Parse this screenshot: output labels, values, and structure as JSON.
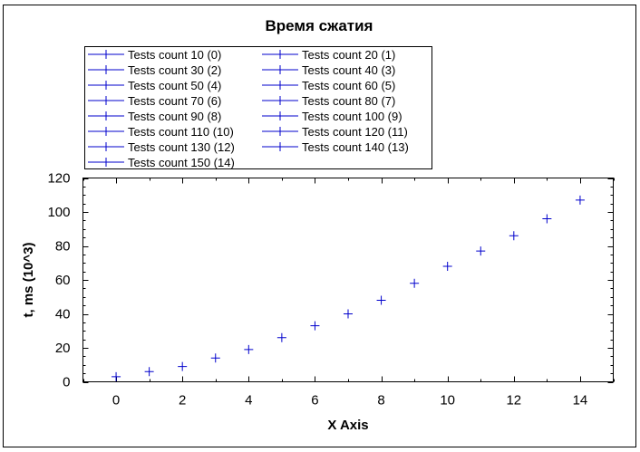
{
  "chart_data": {
    "type": "scatter",
    "title": "Время сжатия",
    "xlabel": "X Axis",
    "ylabel": "t, ms (10^3)",
    "xlim": [
      -1,
      15
    ],
    "ylim": [
      0,
      120
    ],
    "x_ticks": [
      0,
      2,
      4,
      6,
      8,
      10,
      12,
      14
    ],
    "y_ticks": [
      0,
      20,
      40,
      60,
      80,
      100,
      120
    ],
    "legend_position": "top",
    "marker": "plus",
    "color": "#0000cc",
    "series": [
      {
        "name": "Tests count 10 (0)",
        "x": 0,
        "y": 3
      },
      {
        "name": "Tests count 20 (1)",
        "x": 1,
        "y": 6
      },
      {
        "name": "Tests count 30 (2)",
        "x": 2,
        "y": 9
      },
      {
        "name": "Tests count 40 (3)",
        "x": 3,
        "y": 14
      },
      {
        "name": "Tests count 50 (4)",
        "x": 4,
        "y": 19
      },
      {
        "name": "Tests count 60 (5)",
        "x": 5,
        "y": 26
      },
      {
        "name": "Tests count 70 (6)",
        "x": 6,
        "y": 33
      },
      {
        "name": "Tests count 80 (7)",
        "x": 7,
        "y": 40
      },
      {
        "name": "Tests count 90 (8)",
        "x": 8,
        "y": 48
      },
      {
        "name": "Tests count 100 (9)",
        "x": 9,
        "y": 58
      },
      {
        "name": "Tests count 110 (10)",
        "x": 10,
        "y": 68
      },
      {
        "name": "Tests count 120 (11)",
        "x": 11,
        "y": 77
      },
      {
        "name": "Tests count 130 (12)",
        "x": 12,
        "y": 86
      },
      {
        "name": "Tests count 140 (13)",
        "x": 13,
        "y": 96
      },
      {
        "name": "Tests count 150 (14)",
        "x": 14,
        "y": 107
      }
    ]
  }
}
